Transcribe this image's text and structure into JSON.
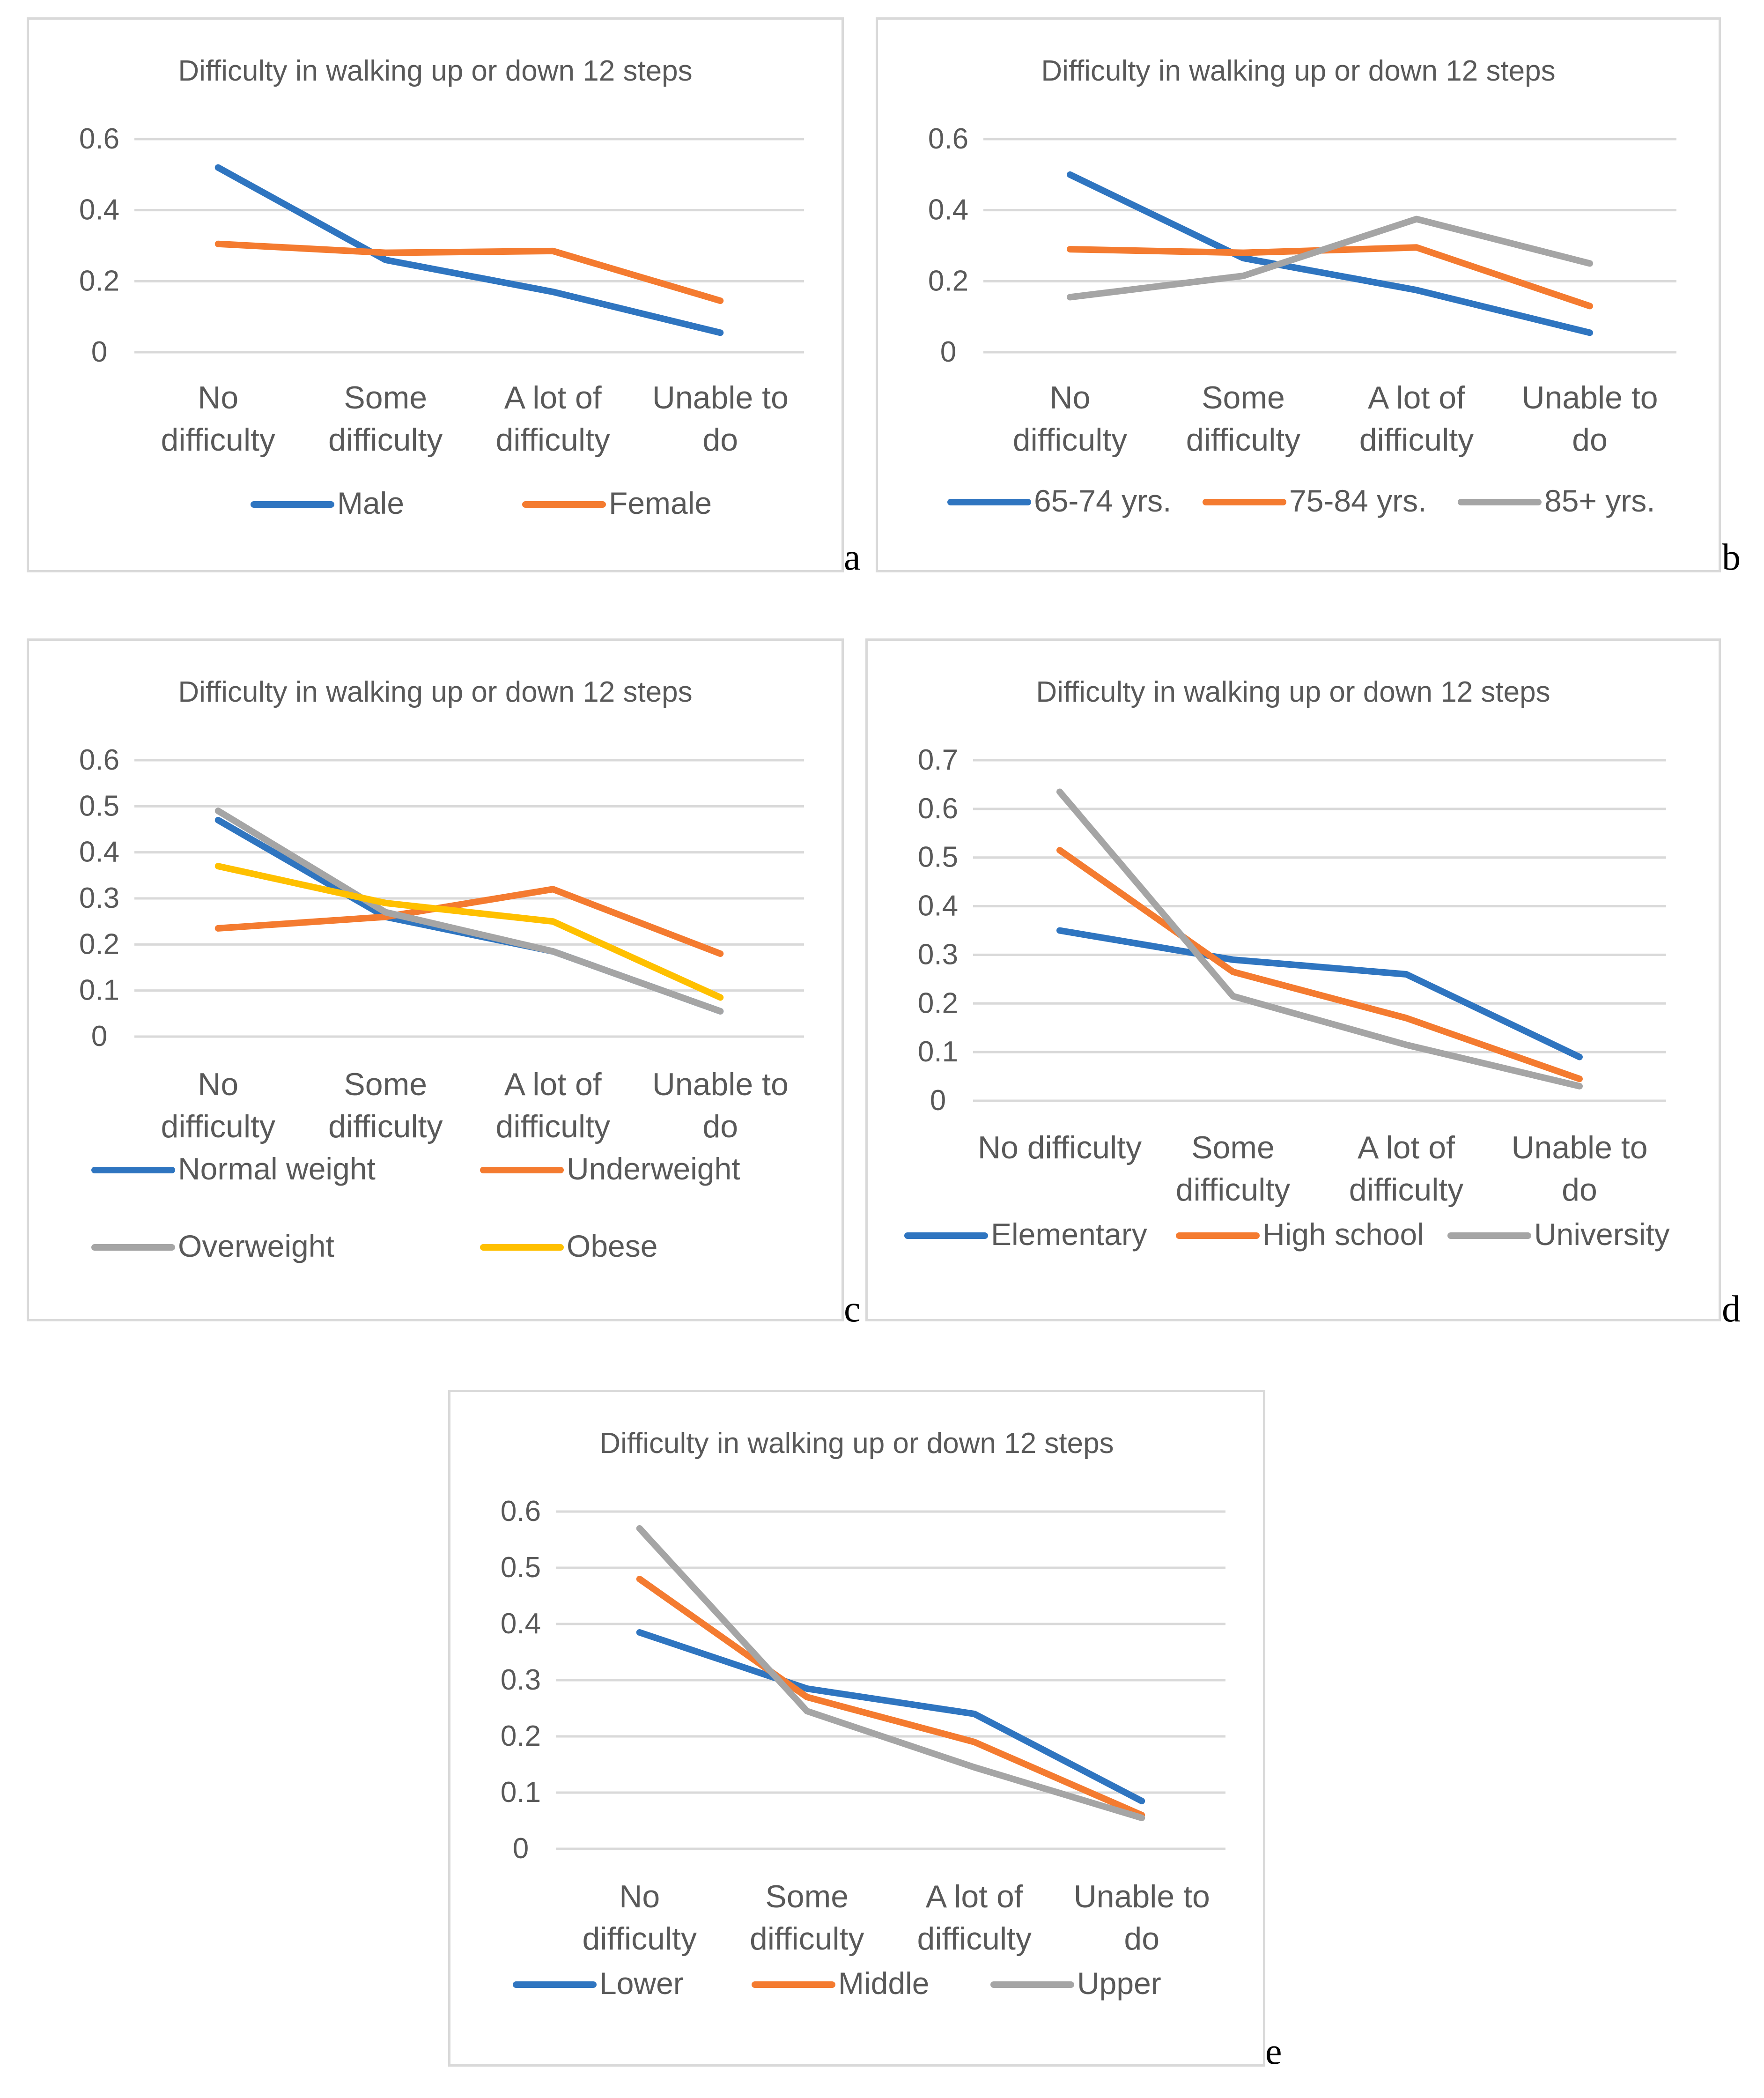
{
  "colors": {
    "blue": "#2f75c0",
    "orange": "#f47b30",
    "gray": "#a5a5a5",
    "yellow": "#ffc000"
  },
  "chart_data": [
    {
      "id": "a",
      "letter": "a",
      "type": "line",
      "title": "Difficulty in walking up or down 12 steps",
      "categories": [
        [
          "No",
          "difficulty"
        ],
        [
          "Some",
          "difficulty"
        ],
        [
          "A lot of",
          "difficulty"
        ],
        [
          "Unable to",
          "do"
        ]
      ],
      "ylim": [
        0,
        0.6
      ],
      "yticks": [
        "0",
        "0.2",
        "0.4",
        "0.6"
      ],
      "ystep": 0.2,
      "legend_cols": 2,
      "series": [
        {
          "name": "Male",
          "color": "blue",
          "values": [
            0.52,
            0.26,
            0.17,
            0.055
          ]
        },
        {
          "name": "Female",
          "color": "orange",
          "values": [
            0.305,
            0.28,
            0.285,
            0.145
          ]
        }
      ]
    },
    {
      "id": "b",
      "letter": "b",
      "type": "line",
      "title": "Difficulty in walking up or down 12 steps",
      "categories": [
        [
          "No",
          "difficulty"
        ],
        [
          "Some",
          "difficulty"
        ],
        [
          "A lot of",
          "difficulty"
        ],
        [
          "Unable to",
          "do"
        ]
      ],
      "ylim": [
        0,
        0.6
      ],
      "yticks": [
        "0",
        "0.2",
        "0.4",
        "0.6"
      ],
      "ystep": 0.2,
      "legend_cols": 3,
      "series": [
        {
          "name": "65-74 yrs.",
          "color": "blue",
          "values": [
            0.5,
            0.265,
            0.175,
            0.055
          ]
        },
        {
          "name": "75-84 yrs.",
          "color": "orange",
          "values": [
            0.29,
            0.28,
            0.295,
            0.13
          ]
        },
        {
          "name": "85+ yrs.",
          "color": "gray",
          "values": [
            0.155,
            0.215,
            0.375,
            0.25
          ]
        }
      ]
    },
    {
      "id": "c",
      "letter": "c",
      "type": "line",
      "title": "Difficulty in walking up or down 12 steps",
      "categories": [
        [
          "No",
          "difficulty"
        ],
        [
          "Some",
          "difficulty"
        ],
        [
          "A lot of",
          "difficulty"
        ],
        [
          "Unable to",
          "do"
        ]
      ],
      "ylim": [
        0,
        0.6
      ],
      "yticks": [
        "0",
        "0.1",
        "0.2",
        "0.3",
        "0.4",
        "0.5",
        "0.6"
      ],
      "ystep": 0.1,
      "legend_cols": 2,
      "series": [
        {
          "name": "Normal weight",
          "color": "blue",
          "values": [
            0.47,
            0.26,
            0.185,
            0.055
          ]
        },
        {
          "name": "Underweight",
          "color": "orange",
          "values": [
            0.235,
            0.26,
            0.32,
            0.18
          ]
        },
        {
          "name": "Overweight",
          "color": "gray",
          "values": [
            0.49,
            0.27,
            0.185,
            0.055
          ]
        },
        {
          "name": "Obese",
          "color": "yellow",
          "values": [
            0.37,
            0.29,
            0.25,
            0.085
          ]
        }
      ]
    },
    {
      "id": "d",
      "letter": "d",
      "type": "line",
      "title": "Difficulty in walking up or down 12 steps",
      "categories": [
        [
          "No difficulty"
        ],
        [
          "Some",
          "difficulty"
        ],
        [
          "A lot of",
          "difficulty"
        ],
        [
          "Unable to",
          "do"
        ]
      ],
      "ylim": [
        0,
        0.7
      ],
      "yticks": [
        "0",
        "0.1",
        "0.2",
        "0.3",
        "0.4",
        "0.5",
        "0.6",
        "0.7"
      ],
      "ystep": 0.1,
      "legend_cols": 3,
      "series": [
        {
          "name": "Elementary",
          "color": "blue",
          "values": [
            0.35,
            0.29,
            0.26,
            0.09
          ]
        },
        {
          "name": "High school",
          "color": "orange",
          "values": [
            0.515,
            0.265,
            0.17,
            0.045
          ]
        },
        {
          "name": "University",
          "color": "gray",
          "values": [
            0.635,
            0.215,
            0.115,
            0.03
          ]
        }
      ]
    },
    {
      "id": "e",
      "letter": "e",
      "type": "line",
      "title": "Difficulty in walking up or down 12 steps",
      "categories": [
        [
          "No",
          "difficulty"
        ],
        [
          "Some",
          "difficulty"
        ],
        [
          "A lot of",
          "difficulty"
        ],
        [
          "Unable to",
          "do"
        ]
      ],
      "ylim": [
        0,
        0.6
      ],
      "yticks": [
        "0",
        "0.1",
        "0.2",
        "0.3",
        "0.4",
        "0.5",
        "0.6"
      ],
      "ystep": 0.1,
      "legend_cols": 3,
      "series": [
        {
          "name": "Lower",
          "color": "blue",
          "values": [
            0.385,
            0.285,
            0.24,
            0.085
          ]
        },
        {
          "name": "Middle",
          "color": "orange",
          "values": [
            0.48,
            0.27,
            0.19,
            0.06
          ]
        },
        {
          "name": "Upper",
          "color": "gray",
          "values": [
            0.57,
            0.245,
            0.145,
            0.055
          ]
        }
      ]
    }
  ]
}
